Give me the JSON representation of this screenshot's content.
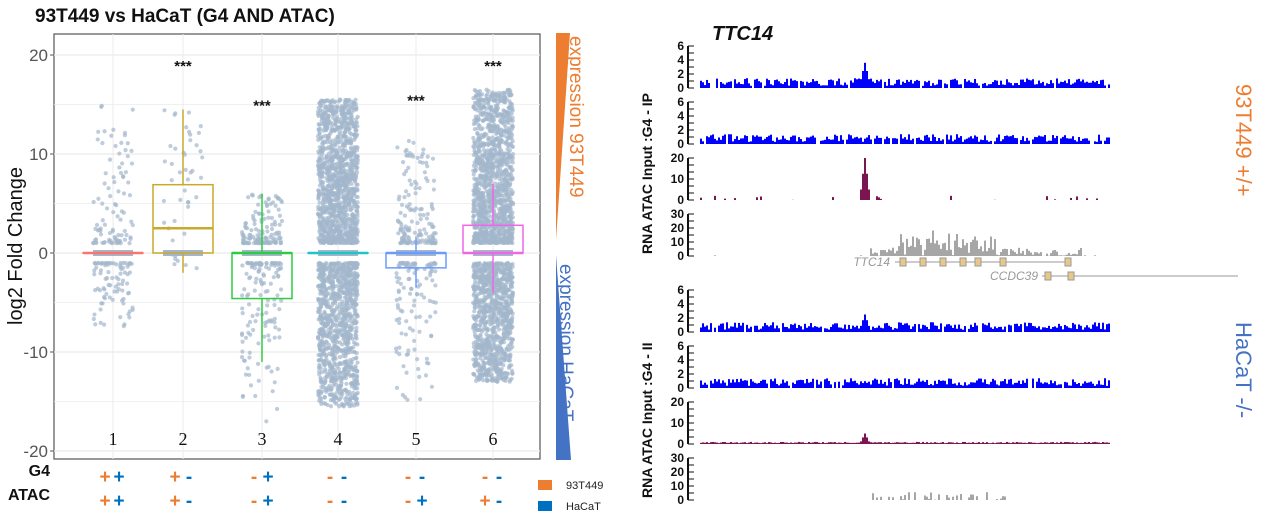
{
  "colors": {
    "t93": "#ED7D31",
    "hacat": "#4472C4",
    "hacat_sign": "#0070C0",
    "points": "#a3b6cc",
    "g4": "#0000ff",
    "atac": "#7b1450",
    "rna": "#a6a6a6"
  },
  "chart_data": [
    {
      "type": "box",
      "title": "93T449 vs HaCaT (G4 AND ATAC)",
      "ylabel": "log2 Fold Change",
      "xlabel": "",
      "ylim": [
        -20,
        22
      ],
      "yticks": [
        "20",
        "10",
        "0",
        "-10",
        "-20"
      ],
      "ytick_values": [
        20,
        10,
        0,
        -10,
        -20
      ],
      "grid": true,
      "categories": [
        "1",
        "2",
        "3",
        "4",
        "5",
        "6"
      ],
      "groups": [
        {
          "label": "1",
          "color": "#F8766D",
          "q1": 0,
          "median": 0,
          "q3": 0,
          "whisker_low": 0,
          "whisker_high": 0,
          "points_range": [
            -8,
            15
          ],
          "points_density": "low",
          "significance": "",
          "g4": [
            "+",
            "+"
          ],
          "atac": [
            "+",
            "+"
          ]
        },
        {
          "label": "2",
          "color": "#C9A92B",
          "q1": 0,
          "median": 2.5,
          "q3": 6.9,
          "whisker_low": -2,
          "whisker_high": 14.5,
          "points_range": [
            -2,
            14.5
          ],
          "points_density": "sparse",
          "significance": "***",
          "sig_y": 19,
          "g4": [
            "+",
            "-"
          ],
          "atac": [
            "+",
            "-"
          ]
        },
        {
          "label": "3",
          "color": "#2ECC40",
          "q1": -4.6,
          "median": 0,
          "q3": 0,
          "whisker_low": -11,
          "whisker_high": 6,
          "points_range": [
            -17.5,
            6
          ],
          "points_density": "medium",
          "significance": "***",
          "sig_y": 15,
          "g4": [
            "-",
            "+"
          ],
          "atac": [
            "-",
            "+"
          ]
        },
        {
          "label": "4",
          "color": "#1FC4C4",
          "q1": 0,
          "median": 0,
          "q3": 0,
          "whisker_low": 0,
          "whisker_high": 0,
          "points_range": [
            -15.5,
            15.5
          ],
          "points_density": "high",
          "significance": "",
          "g4": [
            "-",
            "-"
          ],
          "atac": [
            "-",
            "-"
          ]
        },
        {
          "label": "5",
          "color": "#6A9CFF",
          "q1": -1.5,
          "median": 0,
          "q3": 0,
          "whisker_low": -3.5,
          "whisker_high": 1.5,
          "points_range": [
            -15,
            11.5
          ],
          "points_density": "medium",
          "significance": "***",
          "sig_y": 15.5,
          "g4": [
            "-",
            "-"
          ],
          "atac": [
            "-",
            "+"
          ]
        },
        {
          "label": "6",
          "color": "#F066E8",
          "q1": 0,
          "median": 0,
          "q3": 2.8,
          "whisker_low": -4,
          "whisker_high": 7,
          "points_range": [
            -13,
            16.5
          ],
          "points_density": "high",
          "significance": "***",
          "sig_y": 19,
          "g4": [
            "-",
            "-"
          ],
          "atac": [
            "+",
            "-"
          ]
        }
      ],
      "row_labels": {
        "g4": "G4",
        "atac": "ATAC"
      },
      "legend": [
        {
          "name": "93T449",
          "color": "#ED7D31"
        },
        {
          "name": "HaCaT",
          "color": "#0070C0"
        }
      ],
      "legend_placement": "bottom-right",
      "gradient_labels": {
        "top": "expression 93T449",
        "bottom": "expression HaCaT"
      }
    },
    {
      "type": "genome-tracks",
      "title": "TTC14",
      "panels": [
        {
          "label": "93T449 +/+",
          "tracks": [
            {
              "name": "G4 - IP",
              "ticks": [
                "6",
                "4",
                "2",
                "0"
              ]
            },
            {
              "name": "Input",
              "ticks": [
                "6",
                "4",
                "2",
                "0"
              ]
            },
            {
              "name": "ATAC",
              "ticks": [
                "20",
                "10",
                "0"
              ]
            },
            {
              "name": "RNA",
              "ticks": [
                "30",
                "20",
                "10",
                "0"
              ]
            }
          ],
          "axis_label": "RNA  ATAC  Input :G4 - IP"
        },
        {
          "label": "HaCaT -/-",
          "tracks": [
            {
              "name": "G4 - II",
              "ticks": [
                "6",
                "4",
                "2",
                "0"
              ]
            },
            {
              "name": "Input",
              "ticks": [
                "6",
                "4",
                "2",
                "0"
              ]
            },
            {
              "name": "ATAC",
              "ticks": [
                "20",
                "10",
                "0"
              ]
            },
            {
              "name": "RNA",
              "ticks": [
                "30",
                "20",
                "10",
                "0"
              ]
            }
          ],
          "axis_label": "RNA  ATAC  Input :G4 - II"
        }
      ],
      "genes": [
        "TTC14",
        "CCDC39"
      ]
    }
  ]
}
